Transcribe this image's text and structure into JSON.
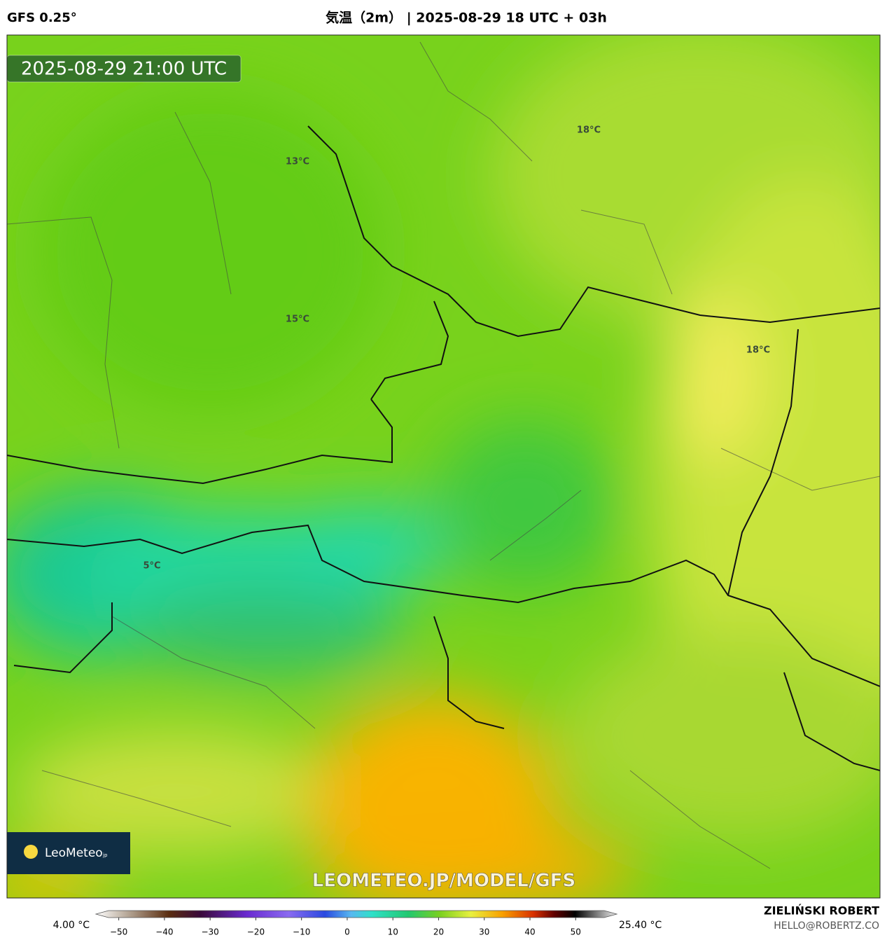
{
  "header": {
    "model": "GFS 0.25°",
    "title": "気温（2m） | 2025-08-29 18 UTC + 03h"
  },
  "map": {
    "timestamp": "2025-08-29 21:00 UTC",
    "labels": [
      "13°C",
      "15°C",
      "18°C",
      "18°C",
      "5°C"
    ],
    "watermark": "LEOMETEO.JP/MODEL/GFS",
    "logo": "LeoMeteo",
    "logo_suffix": "jp"
  },
  "colorbar": {
    "min_label": "4.00 °C",
    "max_label": "25.40 °C",
    "lim": [
      -55,
      59
    ],
    "ticks": [
      {
        "value": -50,
        "label": "−50"
      },
      {
        "value": -40,
        "label": "−40"
      },
      {
        "value": -30,
        "label": "−30"
      },
      {
        "value": -20,
        "label": "−20"
      },
      {
        "value": -10,
        "label": "−10"
      },
      0,
      10,
      20,
      30,
      40,
      50
    ]
  },
  "footer": {
    "author": "ZIELIŃSKI ROBERT",
    "email": "HELLO@ROBERTZ.CO"
  }
}
